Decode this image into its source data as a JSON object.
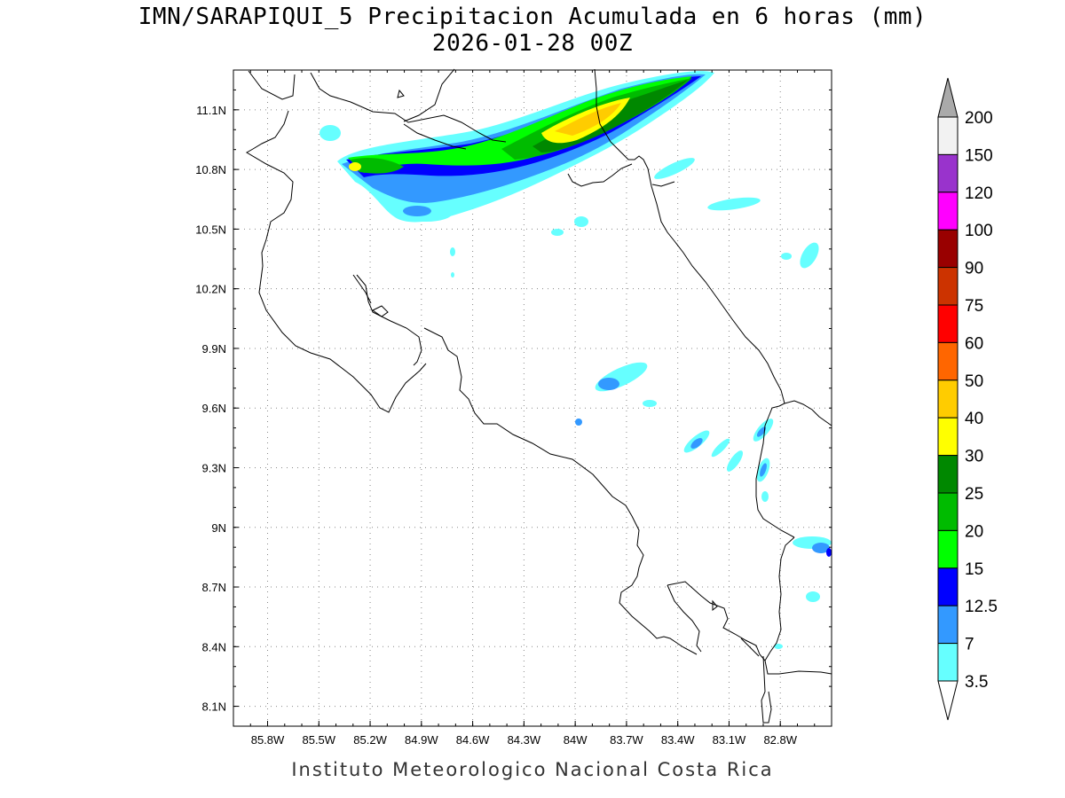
{
  "title": {
    "line1": "IMN/SARAPIQUI_5 Precipitacion Acumulada en 6 horas (mm)",
    "line2": "2026-01-28 00Z"
  },
  "footer": "Instituto Meteorologico Nacional Costa Rica",
  "map": {
    "lon_range": [
      -86.0,
      -82.5
    ],
    "lat_range": [
      8.0,
      11.3
    ],
    "lon_ticks": [
      "85.8W",
      "85.5W",
      "85.2W",
      "84.9W",
      "84.6W",
      "84.3W",
      "84W",
      "83.7W",
      "83.4W",
      "83.1W",
      "82.8W"
    ],
    "lat_ticks": [
      "11.1N",
      "10.8N",
      "10.5N",
      "10.2N",
      "9.9N",
      "9.6N",
      "9.3N",
      "9N",
      "8.7N",
      "8.4N",
      "8.1N"
    ],
    "grid": "dotted"
  },
  "legend": {
    "labels": [
      "200",
      "150",
      "120",
      "100",
      "90",
      "75",
      "60",
      "50",
      "40",
      "30",
      "25",
      "20",
      "15",
      "12.5",
      "7",
      "3.5"
    ],
    "colors": [
      "#f2f2f2",
      "#9933cc",
      "#ff00ff",
      "#990000",
      "#cc3300",
      "#ff0000",
      "#ff6600",
      "#ffcc00",
      "#ffff00",
      "#008800",
      "#00bb00",
      "#00ff00",
      "#0000ff",
      "#3399ff",
      "#66ffff"
    ],
    "arrow_top_color": "#aaaaaa",
    "arrow_bottom_color": "#ffffff"
  }
}
